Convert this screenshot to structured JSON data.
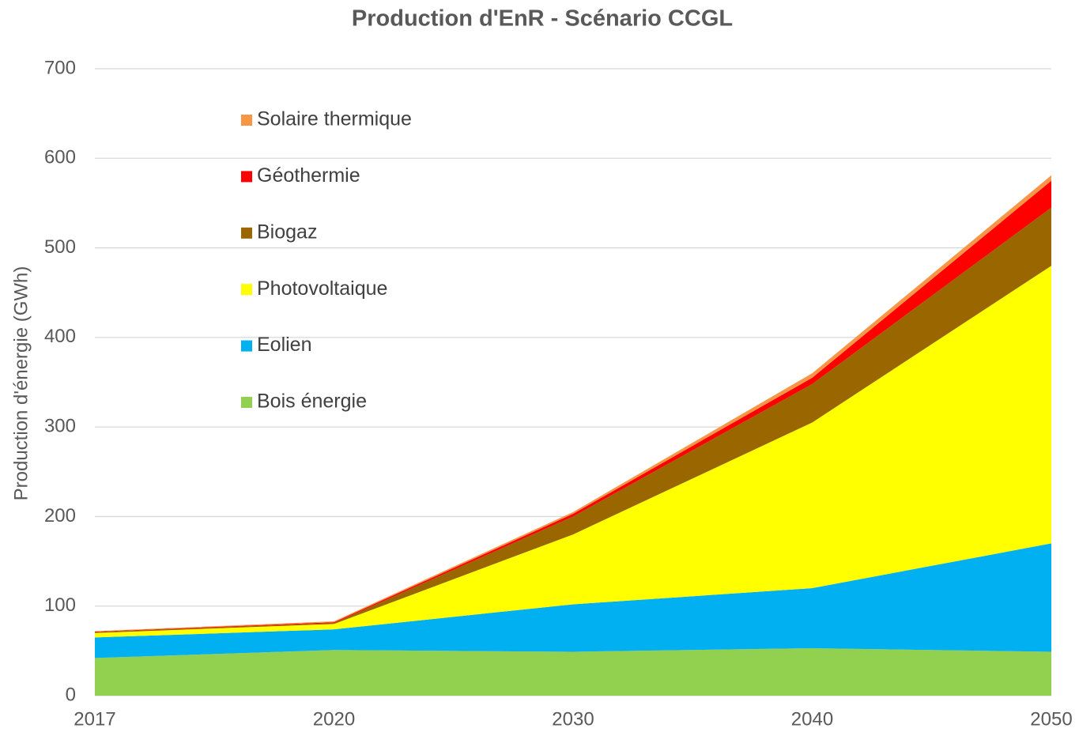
{
  "chart_data": {
    "type": "stacked_area",
    "title": "Production d'EnR - Scénario CCGL",
    "y_label": "Production d'énergie (GWh)",
    "categories": [
      "2017",
      "2020",
      "2030",
      "2040",
      "2050"
    ],
    "series": [
      {
        "name": "Bois énergie",
        "color": "#92d050",
        "values": [
          42,
          51,
          49,
          53,
          49
        ]
      },
      {
        "name": "Eolien",
        "color": "#00b0f0",
        "values": [
          23,
          23,
          53,
          67,
          121
        ]
      },
      {
        "name": "Photovoltaique",
        "color": "#ffff00",
        "values": [
          5,
          6,
          78,
          185,
          310
        ]
      },
      {
        "name": "Biogaz",
        "color": "#996600",
        "values": [
          1,
          1,
          20,
          43,
          65
        ]
      },
      {
        "name": "Géothermie",
        "color": "#ff0000",
        "values": [
          0.5,
          1,
          3,
          7,
          30
        ]
      },
      {
        "name": "Solaire thermique",
        "color": "#f79646",
        "values": [
          0.5,
          1,
          2,
          5,
          6
        ]
      }
    ],
    "ylim": [
      0,
      700
    ],
    "yticks": [
      0,
      100,
      200,
      300,
      400,
      500,
      600,
      700
    ],
    "grid": true
  }
}
